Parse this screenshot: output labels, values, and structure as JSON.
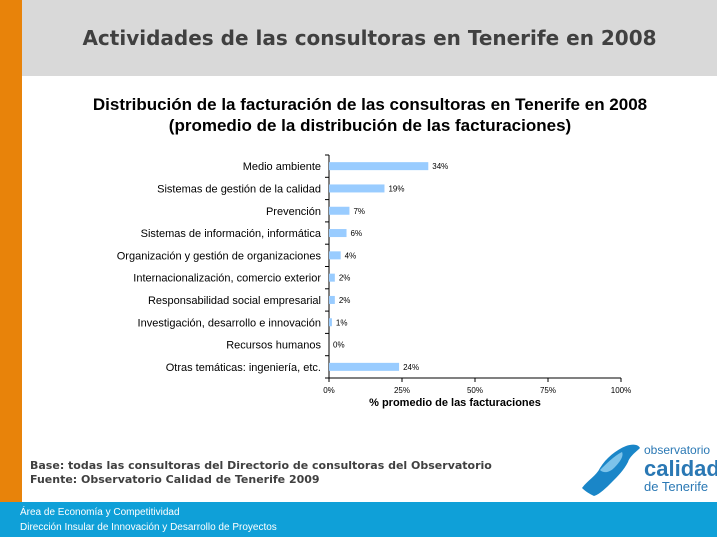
{
  "header": {
    "title": "Actividades de las consultoras en Tenerife en 2008"
  },
  "chart_data": {
    "type": "bar",
    "orientation": "horizontal",
    "title_line1": "Distribución de la facturación de las consultoras en Tenerife en 2008",
    "title_line2": "(promedio de la distribución de las facturaciones)",
    "categories": [
      "Medio ambiente",
      "Sistemas de gestión de la calidad",
      "Prevención",
      "Sistemas de información, informática",
      "Organización y gestión de organizaciones",
      "Internacionalización, comercio exterior",
      "Responsabilidad social empresarial",
      "Investigación, desarrollo e innovación",
      "Recursos humanos",
      "Otras temáticas: ingeniería, etc."
    ],
    "values": [
      34,
      19,
      7,
      6,
      4,
      2,
      2,
      1,
      0,
      24
    ],
    "value_labels": [
      "34%",
      "19%",
      "7%",
      "6%",
      "4%",
      "2%",
      "2%",
      "1%",
      "0%",
      "24%"
    ],
    "xlim": [
      0,
      100
    ],
    "xticks": [
      "0%",
      "25%",
      "50%",
      "75%",
      "100%"
    ],
    "xlabel": "% promedio de las facturaciones",
    "bar_color": "#99ccff",
    "grid": false
  },
  "footnotes": {
    "base": "Base: todas las consultoras del Directorio de consultoras del Observatorio",
    "source": "Fuente: Observatorio Calidad de Tenerife 2009"
  },
  "logo": {
    "line1": "observatorio",
    "line2": "calidad",
    "line3": "de Tenerife"
  },
  "footer": {
    "line1": "Área de Economía y Competitividad",
    "line2": "Dirección Insular de Innovación y Desarrollo de Proyectos"
  },
  "colors": {
    "accent_orange": "#e8830a",
    "footer_blue": "#0fa0d8",
    "header_gray": "#d9d9d9"
  }
}
